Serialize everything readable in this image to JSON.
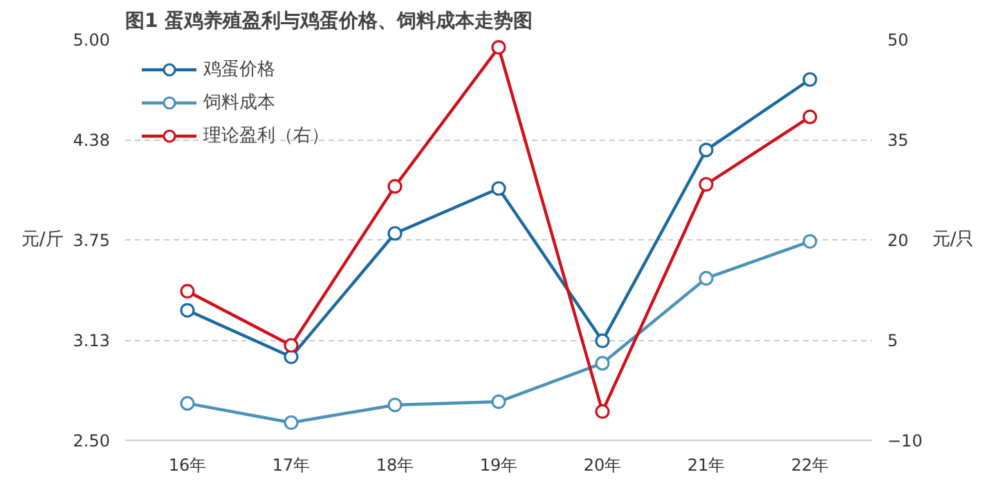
{
  "chart_data": {
    "type": "line",
    "title": "图1 蛋鸡养殖盈利与鸡蛋价格、饲料成本走势图",
    "ylabel": "元/斤",
    "y2label": "元/只",
    "categories": [
      "16年",
      "17年",
      "18年",
      "19年",
      "20年",
      "21年",
      "22年"
    ],
    "series": [
      {
        "name": "鸡蛋价格",
        "color": "#1a6aa0",
        "values": [
          3.31,
          3.02,
          3.79,
          4.07,
          3.12,
          4.31,
          4.75
        ]
      },
      {
        "name": "饲料成本",
        "color": "#4a92b8",
        "values": [
          2.73,
          2.61,
          2.72,
          2.74,
          2.98,
          3.51,
          3.74
        ]
      },
      {
        "name": "理论盈利（右）",
        "color": "#d0101a",
        "axis": "y2",
        "values": [
          12.3,
          4.2,
          28,
          48.8,
          -5.7,
          28.3,
          38.4
        ]
      }
    ],
    "ylim": [
      2.5,
      5.0
    ],
    "yticks": [
      {
        "value": 2.5,
        "label": "2.50"
      },
      {
        "value": 3.125,
        "label": "3.13"
      },
      {
        "value": 3.75,
        "label": "3.75"
      },
      {
        "value": 4.375,
        "label": "4.38"
      },
      {
        "value": 5.0,
        "label": "5.00"
      }
    ],
    "y2lim": [
      -10,
      50
    ],
    "y2ticks": [
      -10,
      5,
      20,
      35,
      50
    ],
    "grid": "y",
    "legend": "top left",
    "marker": "circle",
    "line_style": "solid"
  }
}
